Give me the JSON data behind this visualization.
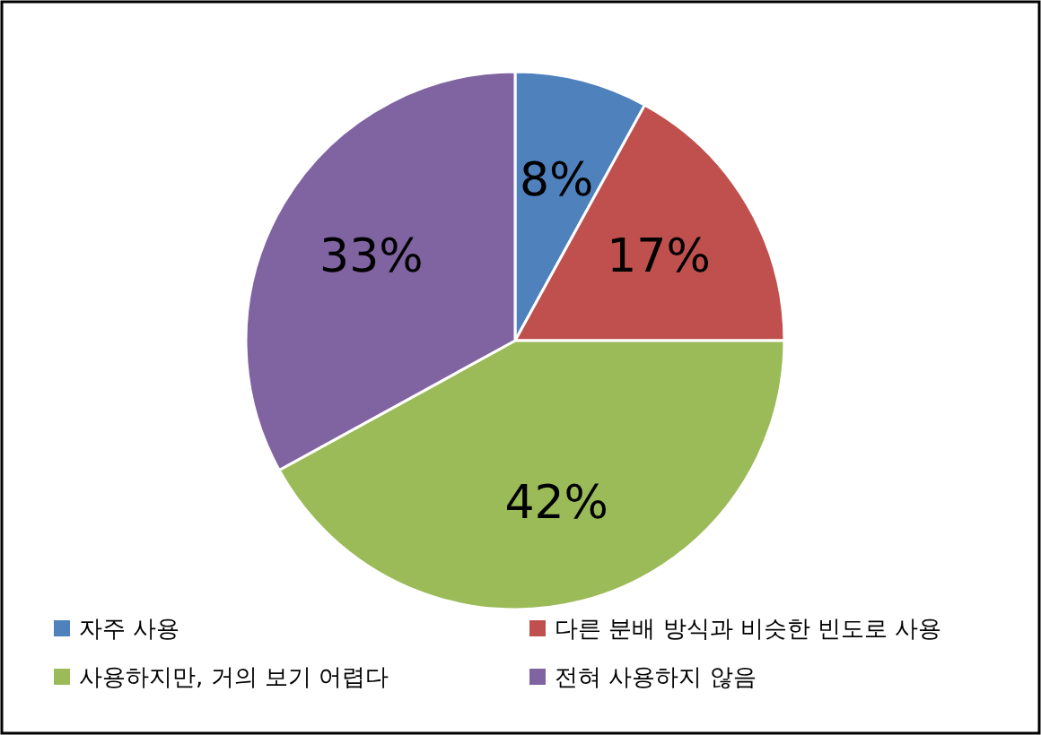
{
  "chart_data": {
    "type": "pie",
    "categories": [
      "자주 사용",
      "다른 분배 방식과 비슷한 빈도로 사용",
      "사용하지만, 거의 보기 어렵다",
      "전혀 사용하지 않음"
    ],
    "values": [
      8,
      17,
      42,
      33
    ],
    "colors": [
      "#4f81bd",
      "#c0504d",
      "#9bbb59",
      "#8064a2"
    ],
    "value_labels": [
      "8%",
      "17%",
      "42%",
      "33%"
    ],
    "legend": "bottom"
  }
}
